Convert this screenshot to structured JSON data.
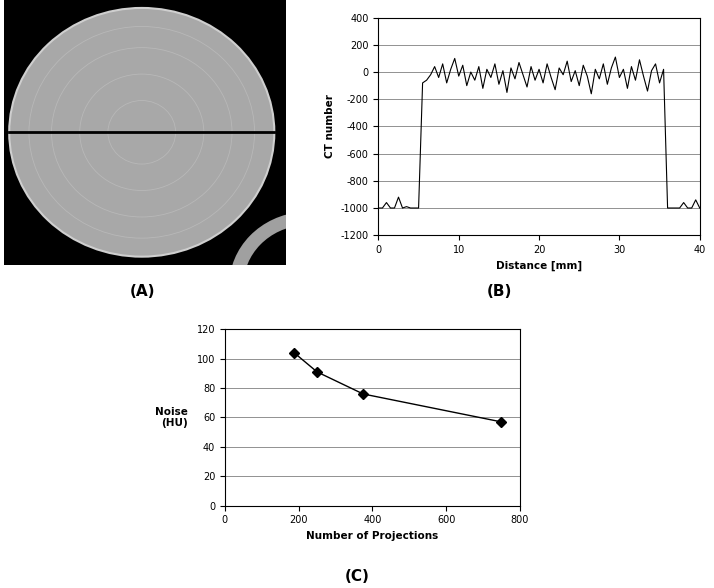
{
  "chart_data": [
    {
      "type": "image",
      "label": "(A)"
    },
    {
      "type": "line",
      "label": "(B)",
      "x_label": "Distance [mm]",
      "y_label": "CT number",
      "x": [
        0,
        0.5,
        1,
        1.5,
        2,
        2.5,
        3,
        3.5,
        4,
        4.5,
        5,
        5.5,
        6,
        6.5,
        7,
        7.5,
        8,
        8.5,
        9,
        9.5,
        10,
        10.5,
        11,
        11.5,
        12,
        12.5,
        13,
        13.5,
        14,
        14.5,
        15,
        15.5,
        16,
        16.5,
        17,
        17.5,
        18,
        18.5,
        19,
        19.5,
        20,
        20.5,
        21,
        21.5,
        22,
        22.5,
        23,
        23.5,
        24,
        24.5,
        25,
        25.5,
        26,
        26.5,
        27,
        27.5,
        28,
        28.5,
        29,
        29.5,
        30,
        30.5,
        31,
        31.5,
        32,
        32.5,
        33,
        33.5,
        34,
        34.5,
        35,
        35.5,
        36,
        36.5,
        37,
        37.5,
        38,
        38.5,
        39,
        39.5,
        40
      ],
      "values": [
        -1000,
        -1000,
        -960,
        -1000,
        -1000,
        -920,
        -1000,
        -990,
        -1000,
        -1000,
        -1000,
        -80,
        -60,
        -20,
        40,
        -40,
        60,
        -80,
        20,
        100,
        -30,
        50,
        -100,
        0,
        -60,
        40,
        -120,
        20,
        -40,
        60,
        -90,
        10,
        -150,
        30,
        -50,
        70,
        -20,
        -110,
        40,
        -60,
        20,
        -80,
        60,
        -40,
        -130,
        30,
        -20,
        80,
        -70,
        10,
        -100,
        50,
        -30,
        -160,
        20,
        -50,
        60,
        -90,
        30,
        110,
        -40,
        20,
        -120,
        40,
        -60,
        90,
        -30,
        -140,
        10,
        60,
        -80,
        20,
        -1000,
        -1000,
        -1000,
        -1000,
        -960,
        -1000,
        -1000,
        -940,
        -1000
      ],
      "color": "#000000",
      "xlim": [
        0,
        40
      ],
      "xticks": [
        0,
        10,
        20,
        30,
        40
      ],
      "ylim": [
        -1200,
        400
      ],
      "yticks": [
        -1200,
        -1000,
        -800,
        -600,
        -400,
        -200,
        0,
        200,
        400
      ],
      "grid": true
    },
    {
      "type": "line",
      "label": "(C)",
      "x_label": "Number of Projections",
      "y_label": "Noise\n(HU)",
      "x": [
        188,
        250,
        375,
        750
      ],
      "values": [
        104,
        91,
        76,
        57
      ],
      "color": "#000000",
      "marker": "diamond",
      "line_style": "solid",
      "xlim": [
        0,
        800
      ],
      "xticks": [
        0,
        200,
        400,
        600,
        800
      ],
      "ylim": [
        0,
        120
      ],
      "yticks": [
        0,
        20,
        40,
        60,
        80,
        100,
        120
      ],
      "grid": true
    }
  ]
}
